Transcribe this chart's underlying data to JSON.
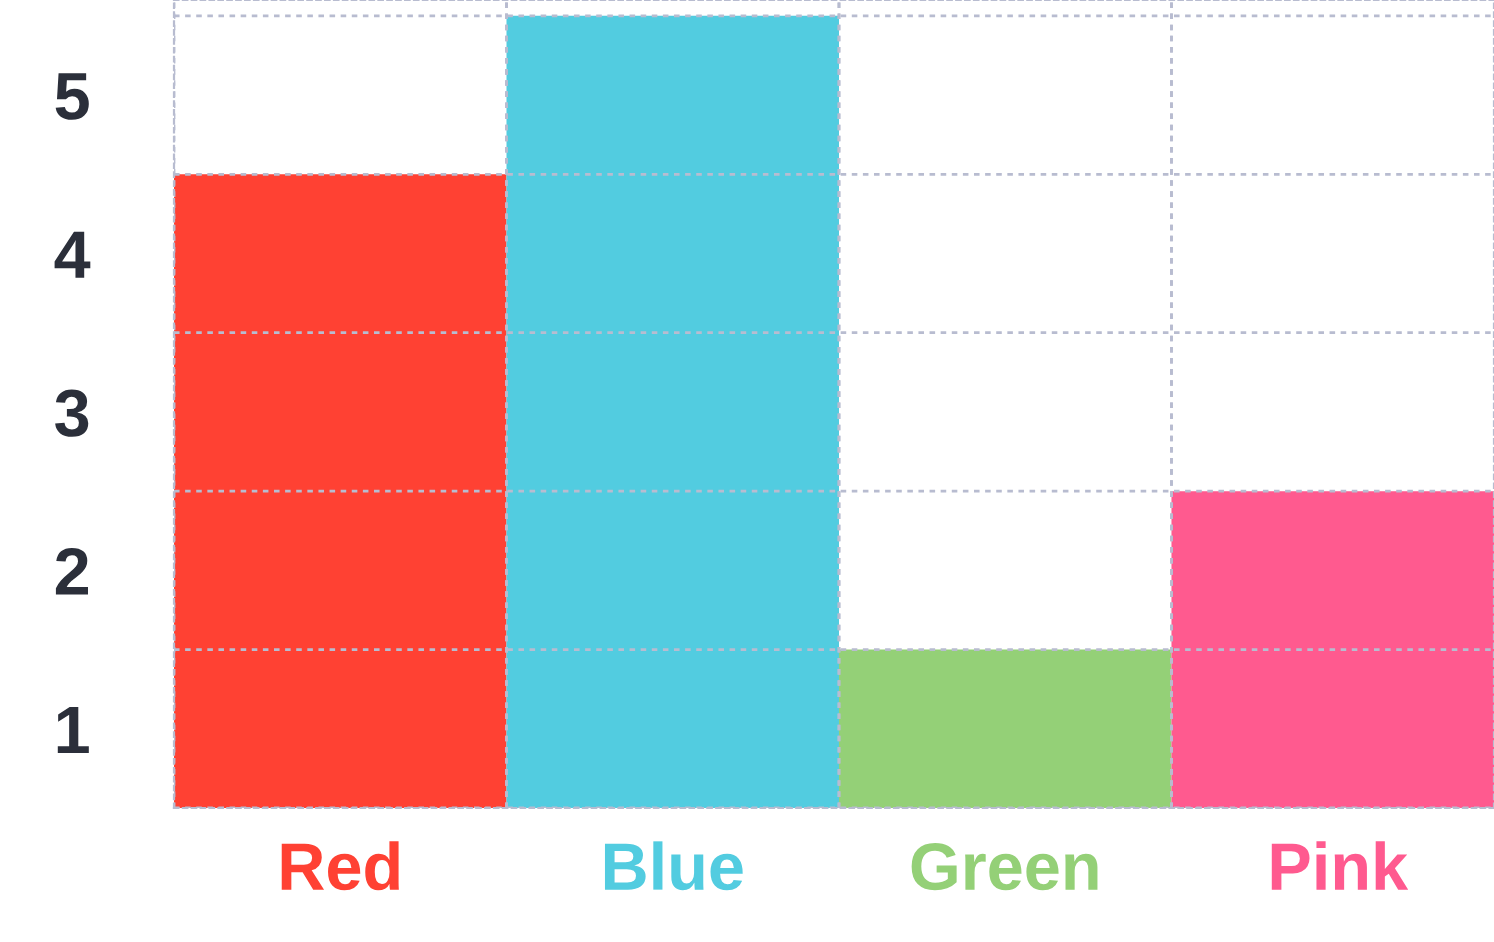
{
  "chart_data": {
    "type": "bar",
    "categories": [
      "Red",
      "Blue",
      "Green",
      "Pink"
    ],
    "colors": [
      "#ff4133",
      "#52cce0",
      "#94d077",
      "#ff5a8f"
    ],
    "values": [
      4,
      5,
      1,
      2
    ],
    "ylim": [
      0,
      5.1
    ],
    "yticks": [
      {
        "value": 0.5,
        "label": "1"
      },
      {
        "value": 1.5,
        "label": "2"
      },
      {
        "value": 2.5,
        "label": "3"
      },
      {
        "value": 3.5,
        "label": "4"
      },
      {
        "value": 4.5,
        "label": "5"
      }
    ],
    "grid": true
  }
}
